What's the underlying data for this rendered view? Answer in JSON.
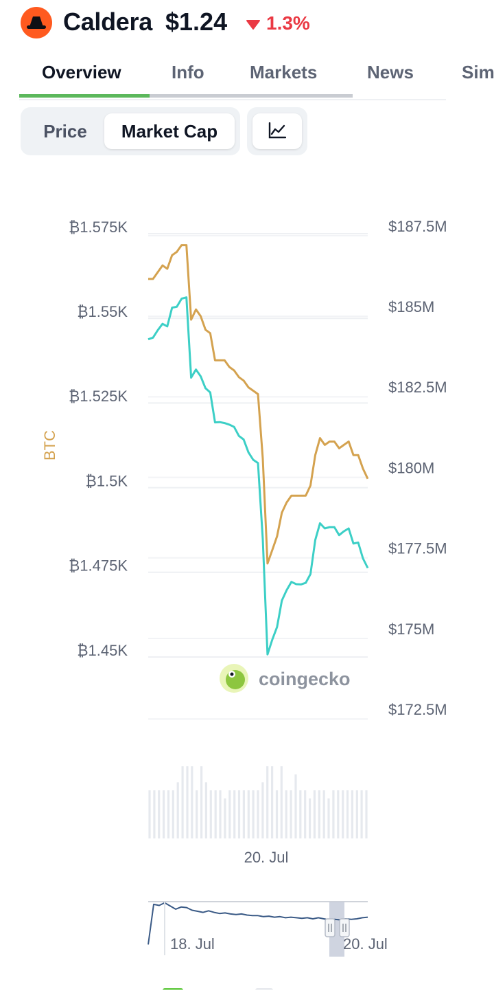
{
  "header": {
    "coin_name": "Caldera",
    "price": "$1.24",
    "change": "1.3%",
    "change_direction": "down",
    "logo_color": "#ff5a1f",
    "change_color": "#ea3943"
  },
  "tabs": [
    {
      "label": "Overview",
      "active": true
    },
    {
      "label": "Info",
      "active": false
    },
    {
      "label": "Markets",
      "active": false
    },
    {
      "label": "News",
      "active": false
    },
    {
      "label": "Sim",
      "active": false
    }
  ],
  "segmented": {
    "price_label": "Price",
    "market_cap_label": "Market Cap",
    "selected": "Market Cap"
  },
  "chart_toggle_icon": "line-chart-icon",
  "watermark": "coingecko",
  "colors": {
    "btc_line": "#d4a24f",
    "mcap_line": "#3ccfc6",
    "navigator_line": "#3a5a86",
    "axis_text": "#5d6474"
  },
  "chart_data": {
    "type": "line",
    "left_axis_label": "BTC",
    "left_ticks": [
      "₿1.575K",
      "₿1.55K",
      "₿1.525K",
      "₿1.5K",
      "₿1.475K",
      "₿1.45K"
    ],
    "right_ticks": [
      "$187.5M",
      "$185M",
      "$182.5M",
      "$180M",
      "$177.5M",
      "$175M",
      "$172.5M"
    ],
    "left_ylim": [
      1450,
      1575
    ],
    "right_ylim": [
      172500,
      187500
    ],
    "x_tick": "20. Jul",
    "series": [
      {
        "name": "BTC",
        "axis": "left",
        "values": [
          1560,
          1560,
          1562,
          1564,
          1563,
          1567,
          1568,
          1570,
          1570,
          1548,
          1551,
          1549,
          1545,
          1544,
          1536,
          1536,
          1536,
          1534,
          1533,
          1531,
          1530,
          1528,
          1527,
          1526,
          1507,
          1476,
          1480,
          1484,
          1491,
          1494,
          1496,
          1496,
          1496,
          1496,
          1499,
          1508,
          1513,
          1511,
          1512,
          1512,
          1510,
          1511,
          1512,
          1508,
          1508,
          1504,
          1501
        ]
      },
      {
        "name": "Market Cap",
        "axis": "right",
        "values": [
          184030,
          184080,
          184310,
          184510,
          184430,
          185010,
          185040,
          185290,
          185330,
          182840,
          183090,
          182880,
          182510,
          182380,
          181450,
          181460,
          181430,
          181380,
          181310,
          181030,
          180920,
          180520,
          180290,
          180190,
          177830,
          174250,
          174710,
          175100,
          175920,
          176240,
          176500,
          176430,
          176420,
          176470,
          176740,
          177800,
          178320,
          178160,
          178200,
          178200,
          177950,
          178070,
          178160,
          177690,
          177720,
          177230,
          176930
        ]
      }
    ],
    "volume": [
      6,
      6,
      6,
      6,
      6,
      6,
      7,
      9,
      9,
      9,
      6,
      9,
      7,
      6,
      6,
      6,
      5,
      6,
      6,
      6,
      6,
      6,
      6,
      6,
      7,
      9,
      9,
      6,
      9,
      6,
      6,
      8,
      6,
      6,
      5,
      6,
      6,
      6,
      5,
      6,
      6,
      6,
      6,
      6,
      6,
      6,
      6
    ],
    "navigator": {
      "x_ticks": [
        "18. Jul",
        "20. Jul"
      ],
      "values": [
        0.2,
        0.95,
        0.93,
        0.98,
        0.92,
        0.86,
        0.9,
        0.89,
        0.84,
        0.82,
        0.8,
        0.83,
        0.8,
        0.78,
        0.79,
        0.77,
        0.76,
        0.77,
        0.75,
        0.74,
        0.74,
        0.72,
        0.73,
        0.71,
        0.72,
        0.7,
        0.71,
        0.7,
        0.69,
        0.7,
        0.68,
        0.7,
        0.68,
        0.66,
        0.67,
        0.66,
        0.68,
        0.67,
        0.68,
        0.7,
        0.71
      ]
    }
  }
}
